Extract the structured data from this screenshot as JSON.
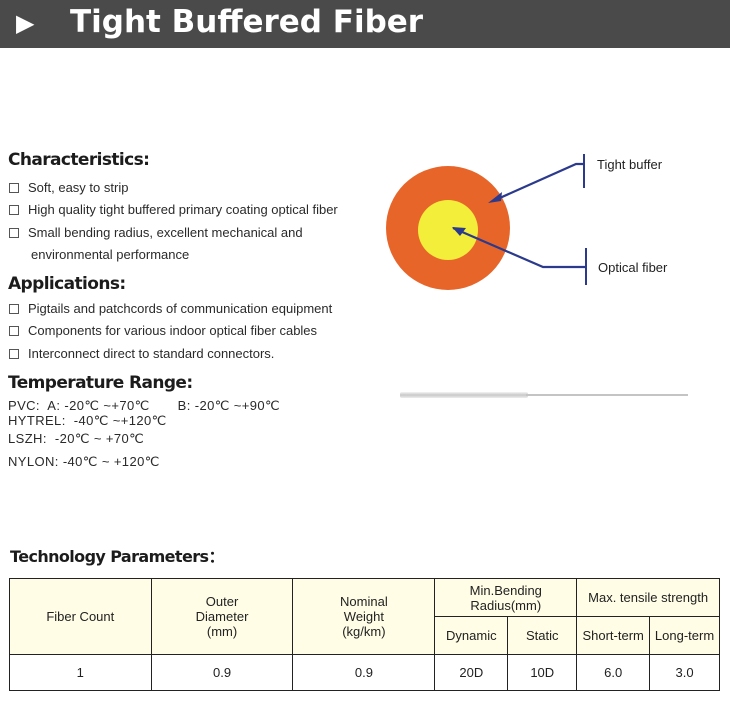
{
  "banner": {
    "arrow": "▶",
    "title": "Tight Buffered Fiber"
  },
  "characteristics": {
    "heading": "Characteristics:",
    "items": [
      "Soft, easy to strip",
      "High quality tight buffered primary coating optical fiber",
      "Small bending radius, excellent mechanical and",
      "environmental performance"
    ]
  },
  "applications": {
    "heading": "Applications:",
    "items": [
      "Pigtails and patchcords of communication equipment",
      "Components for various indoor optical fiber cables",
      "Interconnect direct to standard connectors."
    ]
  },
  "temperature": {
    "heading": "Temperature Range:",
    "lines": [
      "PVC:  A: -20℃ ~+70℃       B: -20℃ ~+90℃",
      "HYTREL:  -40℃ ~+120℃",
      "LSZH:  -20℃ ~ +70℃",
      "NYLON: -40℃ ~ +120℃"
    ]
  },
  "diagram": {
    "outer_label": "Tight buffer",
    "inner_label": "Optical fiber",
    "outer_color": "#e8652a",
    "inner_color": "#f2ee3a",
    "line_color": "#2b3a8c"
  },
  "tech": {
    "heading": "Technology Parameters：",
    "headers": {
      "fiber_count": "Fiber Count",
      "outer_diameter": "Outer Diameter (mm)",
      "nominal_weight": "Nominal Weight (kg/km)",
      "min_bending": "Min.Bending Radius(mm)",
      "dynamic": "Dynamic",
      "static": "Static",
      "max_tensile": "Max. tensile strength",
      "short_term": "Short-term",
      "long_term": "Long-term"
    },
    "row": {
      "fiber_count": "1",
      "outer_diameter": "0.9",
      "nominal_weight": "0.9",
      "dynamic": "20D",
      "static": "10D",
      "short_term": "6.0",
      "long_term": "3.0"
    }
  }
}
